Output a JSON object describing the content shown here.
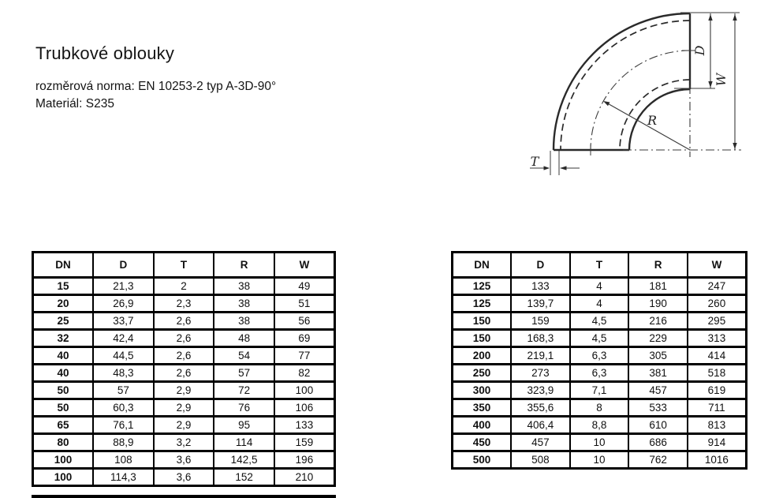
{
  "page": {
    "title": "Trubkové oblouky",
    "norm_line": "rozměrová norma: EN 10253-2 typ A-3D-90°",
    "material_line": "Materiál: S235"
  },
  "diagram": {
    "description": "90° pipe elbow section with dimension callouts",
    "labels": {
      "D": "D",
      "W": "W",
      "R": "R",
      "T": "T"
    }
  },
  "tables": {
    "columns": [
      "DN",
      "D",
      "T",
      "R",
      "W"
    ],
    "left": {
      "rows": [
        [
          "15",
          "21,3",
          "2",
          "38",
          "49"
        ],
        [
          "20",
          "26,9",
          "2,3",
          "38",
          "51"
        ],
        [
          "25",
          "33,7",
          "2,6",
          "38",
          "56"
        ],
        [
          "32",
          "42,4",
          "2,6",
          "48",
          "69"
        ],
        [
          "40",
          "44,5",
          "2,6",
          "54",
          "77"
        ],
        [
          "40",
          "48,3",
          "2,6",
          "57",
          "82"
        ],
        [
          "50",
          "57",
          "2,9",
          "72",
          "100"
        ],
        [
          "50",
          "60,3",
          "2,9",
          "76",
          "106"
        ],
        [
          "65",
          "76,1",
          "2,9",
          "95",
          "133"
        ],
        [
          "80",
          "88,9",
          "3,2",
          "114",
          "159"
        ],
        [
          "100",
          "108",
          "3,6",
          "142,5",
          "196"
        ],
        [
          "100",
          "114,3",
          "3,6",
          "152",
          "210"
        ]
      ]
    },
    "right": {
      "rows": [
        [
          "125",
          "133",
          "4",
          "181",
          "247"
        ],
        [
          "125",
          "139,7",
          "4",
          "190",
          "260"
        ],
        [
          "150",
          "159",
          "4,5",
          "216",
          "295"
        ],
        [
          "150",
          "168,3",
          "4,5",
          "229",
          "313"
        ],
        [
          "200",
          "219,1",
          "6,3",
          "305",
          "414"
        ],
        [
          "250",
          "273",
          "6,3",
          "381",
          "518"
        ],
        [
          "300",
          "323,9",
          "7,1",
          "457",
          "619"
        ],
        [
          "350",
          "355,6",
          "8",
          "533",
          "711"
        ],
        [
          "400",
          "406,4",
          "8,8",
          "610",
          "813"
        ],
        [
          "450",
          "457",
          "10",
          "686",
          "914"
        ],
        [
          "500",
          "508",
          "10",
          "762",
          "1016"
        ]
      ]
    }
  }
}
